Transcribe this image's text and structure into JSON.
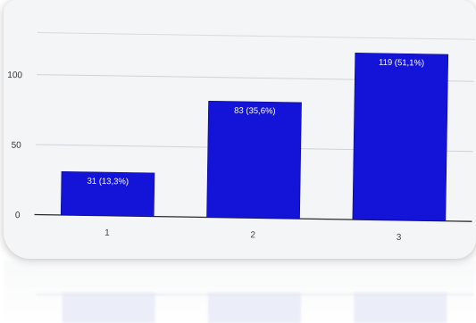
{
  "chart_data": {
    "type": "bar",
    "categories": [
      "1",
      "2",
      "3"
    ],
    "values": [
      31,
      83,
      119
    ],
    "data_labels": [
      "31 (13,3%)",
      "83 (35,6%)",
      "119 (51,1%)"
    ],
    "y_ticks": [
      0,
      50,
      100
    ],
    "ylim": [
      0,
      130
    ],
    "grid": true,
    "legend": "none",
    "bar_color": "#1414d8",
    "label_color": "#ffffff"
  }
}
